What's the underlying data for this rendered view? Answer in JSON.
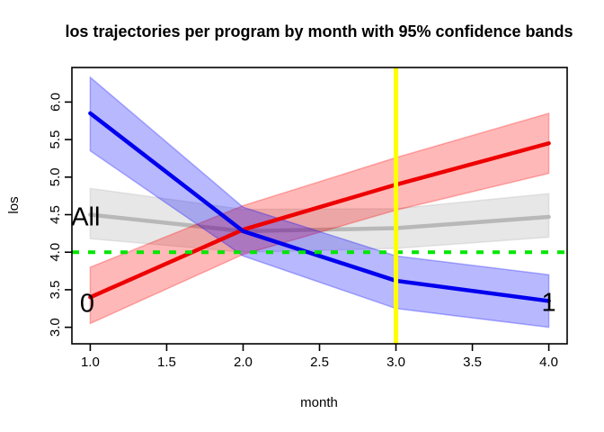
{
  "title": "los trajectories per program by month with 95% confidence bands",
  "chart_data": {
    "type": "line",
    "title": "los trajectories per program by month with 95% confidence bands",
    "xlabel": "month",
    "ylabel": "los",
    "x": [
      1,
      2,
      3,
      4
    ],
    "xlim": [
      0.88,
      4.12
    ],
    "ylim": [
      2.78,
      6.46
    ],
    "grid": false,
    "legend": "inline-labels",
    "xticks": {
      "values": [
        1.0,
        1.5,
        2.0,
        2.5,
        3.0,
        3.5,
        4.0
      ],
      "labels": [
        "1.0",
        "1.5",
        "2.0",
        "2.5",
        "3.0",
        "3.5",
        "4.0"
      ]
    },
    "yticks": {
      "values": [
        3.0,
        3.5,
        4.0,
        4.5,
        5.0,
        5.5,
        6.0
      ],
      "labels": [
        "3.0",
        "3.5",
        "4.0",
        "4.5",
        "5.0",
        "5.5",
        "6.0"
      ]
    },
    "series": [
      {
        "name": "all-programs",
        "label": "All",
        "layer": "back",
        "line_color": "#b8b8b8",
        "band_color": "rgba(185,185,185,0.35)",
        "values": [
          4.5,
          4.28,
          4.32,
          4.47
        ],
        "lower": [
          4.18,
          4.0,
          4.05,
          4.2
        ],
        "upper": [
          4.85,
          4.57,
          4.58,
          4.78
        ],
        "label_x": 0.97,
        "label_y": 4.48
      },
      {
        "name": "program-0",
        "label": "0",
        "layer": "front",
        "line_color": "#ee0000",
        "band_color": "rgba(255,0,0,0.28)",
        "values": [
          3.4,
          4.3,
          4.9,
          5.45
        ],
        "lower": [
          3.05,
          3.97,
          4.56,
          5.05
        ],
        "upper": [
          3.8,
          4.62,
          5.26,
          5.85
        ],
        "label_x": 0.98,
        "label_y": 3.33
      },
      {
        "name": "program-1",
        "label": "1",
        "layer": "front",
        "line_color": "#0000ee",
        "band_color": "rgba(0,0,255,0.28)",
        "values": [
          5.85,
          4.28,
          3.62,
          3.35
        ],
        "lower": [
          5.35,
          3.95,
          3.25,
          3.0
        ],
        "upper": [
          6.33,
          4.6,
          3.95,
          3.7
        ],
        "label_x": 4.0,
        "label_y": 3.34
      }
    ],
    "reference_lines": [
      {
        "name": "threshold-hline",
        "orientation": "horizontal",
        "value": 4.0,
        "color": "#00e600",
        "style": "dashed",
        "width": 4
      },
      {
        "name": "month-3-vline",
        "orientation": "vertical",
        "value": 3.0,
        "color": "#ffff00",
        "style": "solid",
        "width": 5
      }
    ]
  }
}
